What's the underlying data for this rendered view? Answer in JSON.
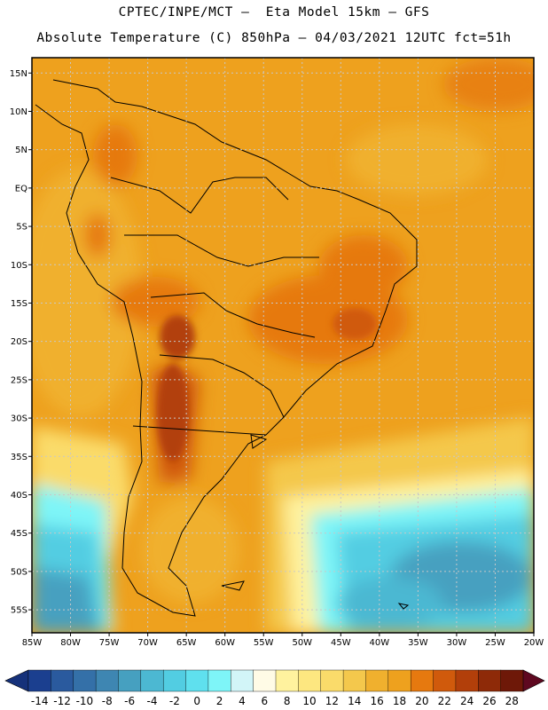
{
  "header": {
    "line1": "CPTEC/INPE/MCT –  Eta Model 15km – GFS",
    "line2": "Absolute Temperature (C) 850hPa – 04/03/2021 12UTC fct=51h"
  },
  "axes": {
    "lat_labels": [
      "15N",
      "10N",
      "5N",
      "EQ",
      "5S",
      "10S",
      "15S",
      "20S",
      "25S",
      "30S",
      "35S",
      "40S",
      "45S",
      "50S",
      "55S"
    ],
    "lon_labels": [
      "85W",
      "80W",
      "75W",
      "70W",
      "65W",
      "60W",
      "55W",
      "50W",
      "45W",
      "40W",
      "35W",
      "30W",
      "25W",
      "20W"
    ],
    "lat_range": [
      17,
      -58
    ],
    "lon_range": [
      -85,
      -20
    ],
    "grid": "dotted"
  },
  "colorbar": {
    "labels": [
      "-14",
      "-12",
      "-10",
      "-8",
      "-6",
      "-4",
      "-2",
      "0",
      "2",
      "4",
      "6",
      "8",
      "10",
      "12",
      "14",
      "16",
      "18",
      "20",
      "22",
      "24",
      "26",
      "28"
    ],
    "colors": [
      "#1b3f8f",
      "#2a5a9e",
      "#3470a8",
      "#3e86b2",
      "#46a0c0",
      "#4cb8d2",
      "#52cde2",
      "#5fe0ee",
      "#7ef5f8",
      "#d2f5f8",
      "#fffbe6",
      "#fff29e",
      "#fde780",
      "#fadb6a",
      "#f4c84c",
      "#f0b02e",
      "#eea11e",
      "#e6790f",
      "#d05a0c",
      "#b23f0a",
      "#8e2a08",
      "#6e1808"
    ],
    "under_color": "#15317a",
    "over_color": "#5e0820"
  },
  "chart_data": {
    "type": "heatmap",
    "title": "Absolute Temperature (C) 850hPa",
    "variable": "Absolute Temperature",
    "units": "C",
    "level": "850hPa",
    "valid": "04/03/2021 12UTC",
    "forecast": "fct=51h",
    "model": "Eta Model 15km – GFS",
    "min_label": -14,
    "max_label": 28,
    "regions": [
      {
        "name": "tropics",
        "approx_value": 17
      },
      {
        "name": "northern Argentina / Chaco",
        "approx_value": 25
      },
      {
        "name": "central Brazil",
        "approx_value": 22
      },
      {
        "name": "southeast Pacific off Chile",
        "approx_value": 2
      },
      {
        "name": "South Atlantic 45S-55S",
        "approx_value": 0
      },
      {
        "name": "Patagonia",
        "approx_value": 14
      }
    ]
  }
}
